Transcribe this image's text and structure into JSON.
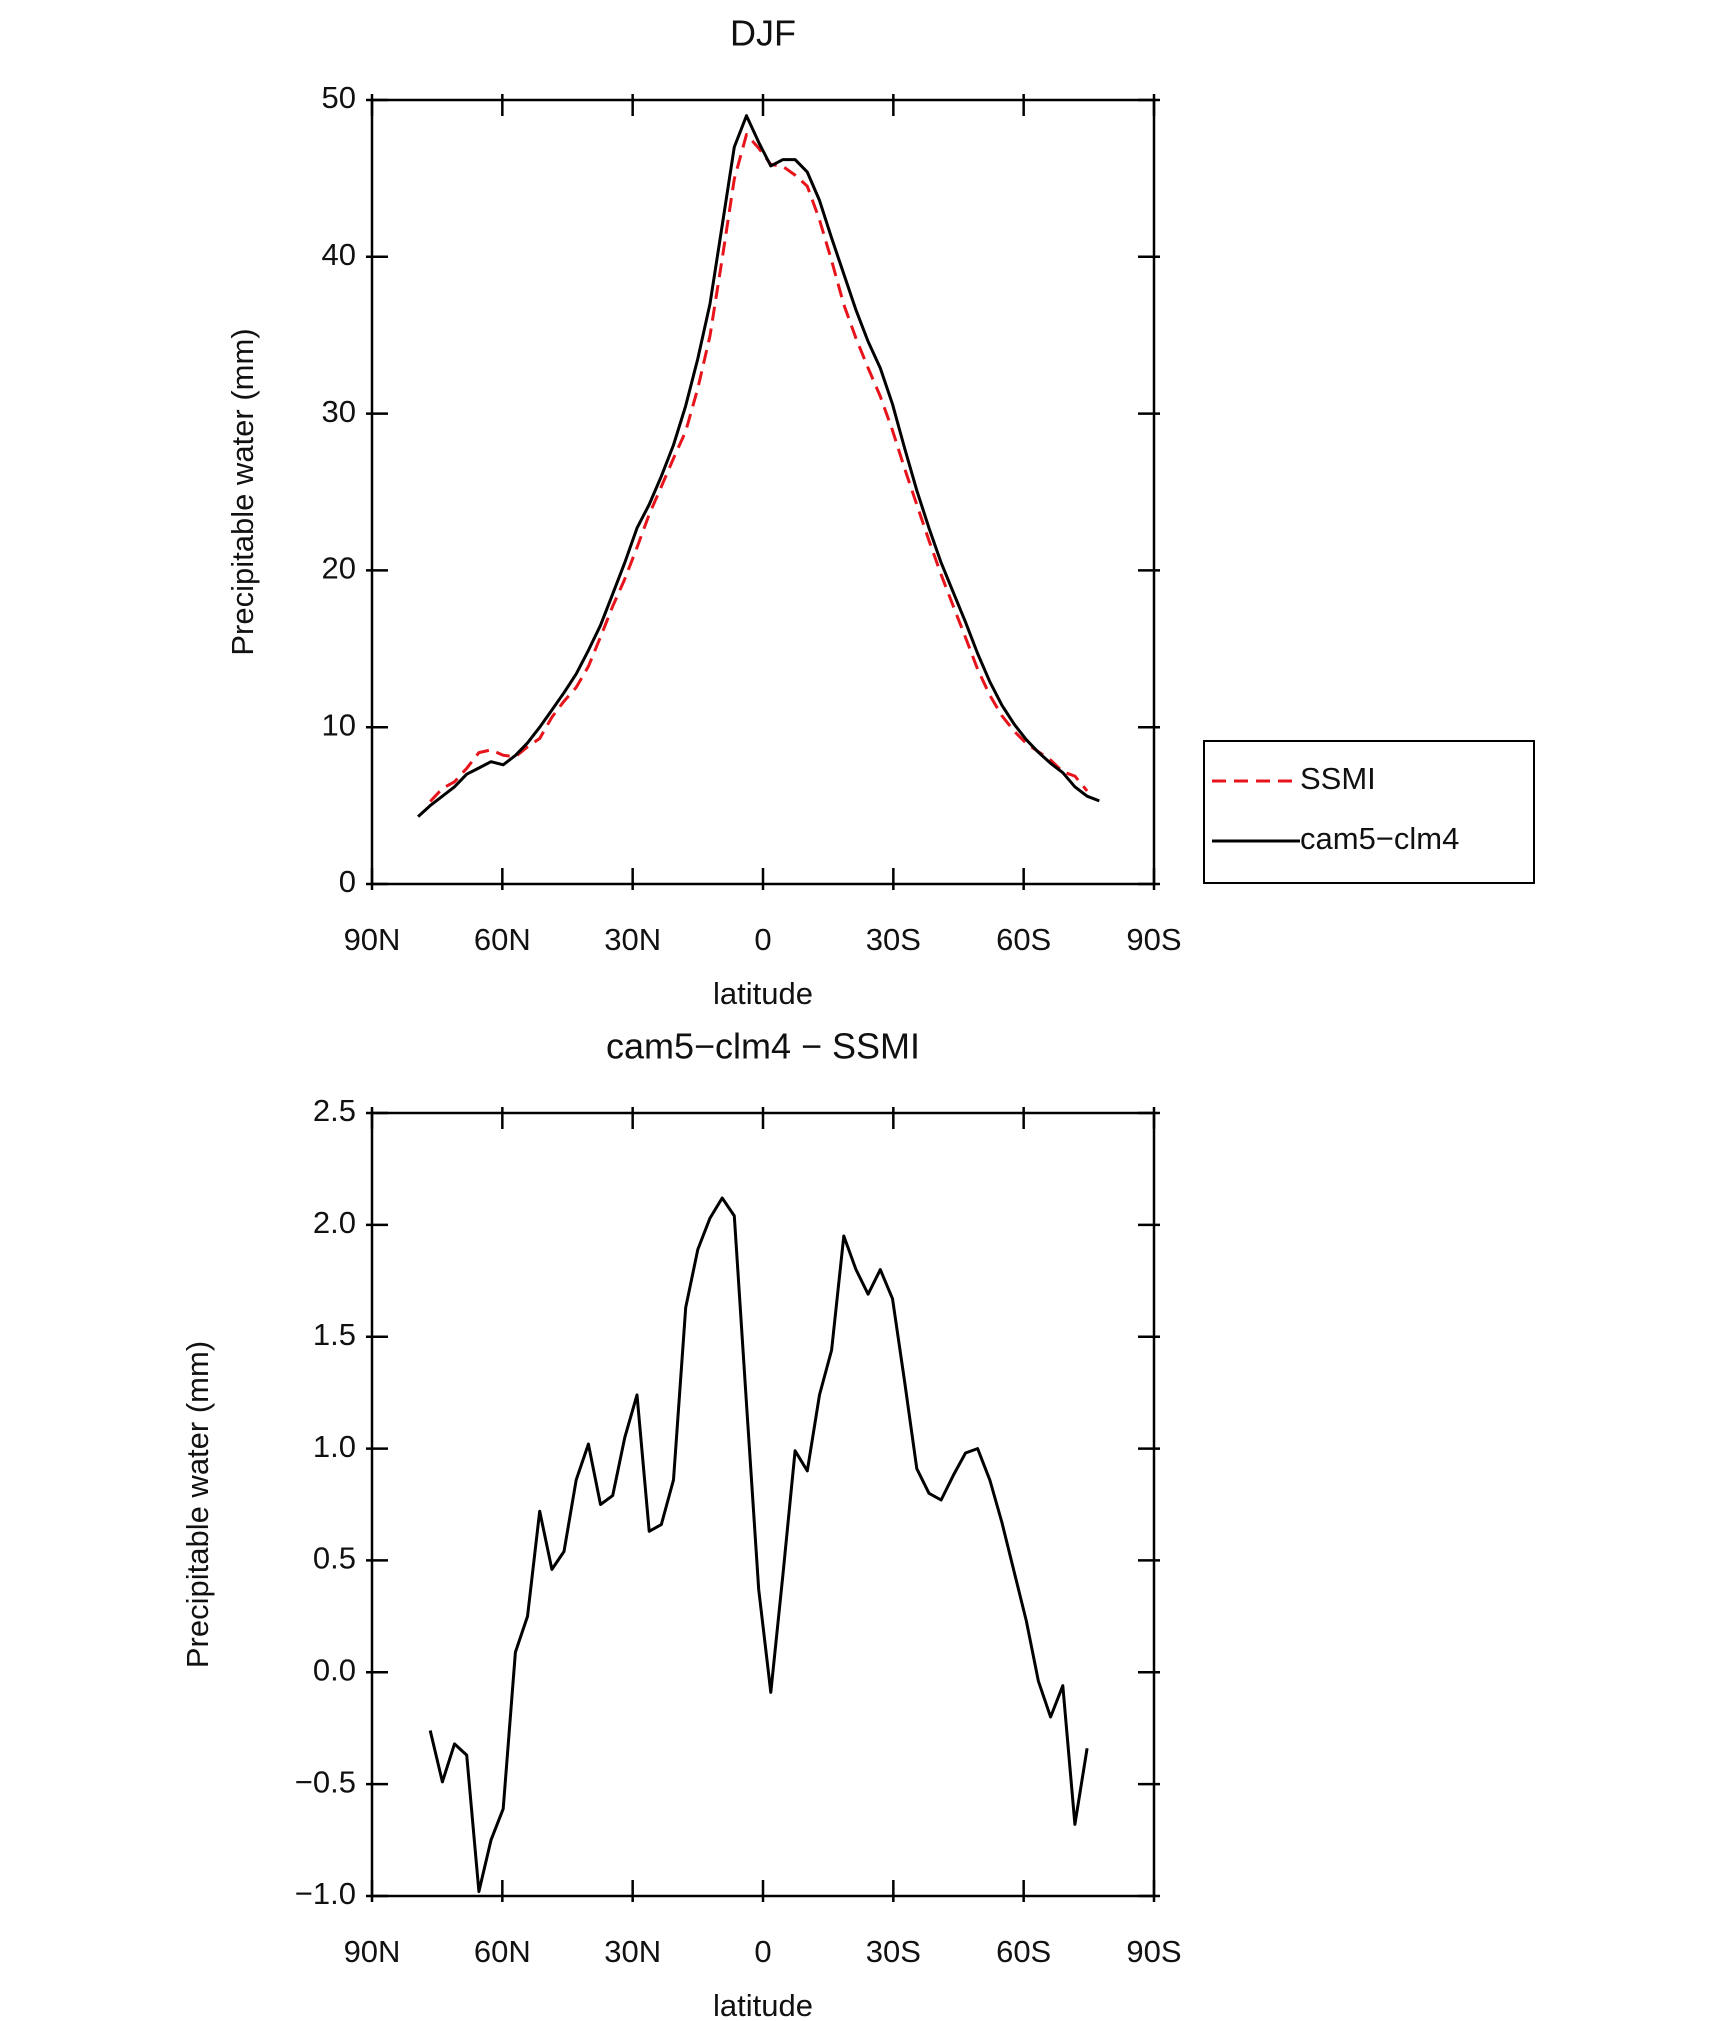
{
  "chart_data": [
    {
      "type": "line",
      "title": "DJF",
      "xlabel": "latitude",
      "ylabel": "Precipitable water (mm)",
      "x": [
        79.4,
        76.6,
        73.8,
        71.0,
        68.2,
        65.4,
        62.6,
        59.8,
        57.0,
        54.2,
        51.4,
        48.6,
        45.8,
        43.0,
        40.2,
        37.4,
        34.6,
        31.8,
        29.0,
        26.2,
        23.4,
        20.6,
        17.8,
        15.0,
        12.2,
        9.4,
        6.6,
        3.8,
        1.0,
        -1.8,
        -4.6,
        -7.4,
        -10.2,
        -13.0,
        -15.8,
        -18.6,
        -21.4,
        -24.2,
        -27.0,
        -29.8,
        -32.6,
        -35.4,
        -38.2,
        -41.0,
        -43.8,
        -46.6,
        -49.4,
        -52.2,
        -55.0,
        -57.8,
        -60.6,
        -63.4,
        -66.2,
        -69.0,
        -71.8,
        -74.6,
        -77.4
      ],
      "series": [
        {
          "name": "SSMI",
          "color": "#e8141b",
          "dash": true,
          "values": [
            null,
            5.26,
            6.09,
            6.52,
            7.37,
            8.38,
            8.55,
            8.21,
            8.11,
            8.75,
            9.28,
            10.64,
            11.66,
            12.54,
            13.88,
            15.75,
            17.71,
            19.45,
            21.46,
            23.57,
            25.34,
            27.14,
            28.87,
            31.61,
            34.97,
            39.88,
            44.96,
            47.8,
            46.93,
            45.89,
            45.76,
            45.21,
            44.5,
            42.36,
            39.76,
            36.95,
            34.8,
            32.91,
            31.1,
            28.93,
            26.5,
            24.19,
            21.9,
            19.73,
            17.72,
            15.72,
            13.7,
            12.04,
            10.73,
            9.75,
            8.97,
            8.44,
            7.9,
            7.16,
            6.88,
            5.94,
            null
          ]
        },
        {
          "name": "cam5−clm4",
          "color": "#000000",
          "dash": false,
          "values": [
            4.3,
            5.0,
            5.6,
            6.2,
            7.0,
            7.4,
            7.8,
            7.6,
            8.2,
            9.0,
            10.0,
            11.1,
            12.2,
            13.4,
            14.9,
            16.5,
            18.5,
            20.5,
            22.7,
            24.2,
            26.0,
            28.0,
            30.5,
            33.5,
            37.0,
            42.0,
            47.0,
            49.0,
            47.3,
            45.8,
            46.2,
            46.2,
            45.4,
            43.6,
            41.2,
            38.9,
            36.6,
            34.6,
            32.9,
            30.6,
            27.8,
            25.1,
            22.7,
            20.5,
            18.6,
            16.7,
            14.7,
            12.9,
            11.4,
            10.2,
            9.2,
            8.4,
            7.7,
            7.1,
            6.2,
            5.6,
            5.3
          ]
        }
      ],
      "xlim": [
        90,
        -90
      ],
      "xticks": [
        {
          "value": 90,
          "label": "90N"
        },
        {
          "value": 60,
          "label": "60N"
        },
        {
          "value": 30,
          "label": "30N"
        },
        0,
        {
          "value": -30,
          "label": "30S"
        },
        {
          "value": -60,
          "label": "60S"
        },
        {
          "value": -90,
          "label": "90S"
        }
      ],
      "ylim": [
        0,
        50
      ],
      "yticks": [
        0,
        10,
        20,
        30,
        40,
        50
      ],
      "legend": "right"
    },
    {
      "type": "line",
      "title": "cam5−clm4 − SSMI",
      "xlabel": "latitude",
      "ylabel": "Precipitable water (mm)",
      "x": [
        76.6,
        73.8,
        71.0,
        68.2,
        65.4,
        62.6,
        59.8,
        57.0,
        54.2,
        51.4,
        48.6,
        45.8,
        43.0,
        40.2,
        37.4,
        34.6,
        31.8,
        29.0,
        26.2,
        23.4,
        20.6,
        17.8,
        15.0,
        12.2,
        9.4,
        6.6,
        3.8,
        1.0,
        -1.8,
        -4.6,
        -7.4,
        -10.2,
        -13.0,
        -15.8,
        -18.6,
        -21.4,
        -24.2,
        -27.0,
        -29.8,
        -32.6,
        -35.4,
        -38.2,
        -41.0,
        -43.8,
        -46.6,
        -49.4,
        -52.2,
        -55.0,
        -57.8,
        -60.6,
        -63.4,
        -66.2,
        -69.0,
        -71.8,
        -74.6
      ],
      "values": [
        -0.26,
        -0.49,
        -0.32,
        -0.37,
        -0.98,
        -0.75,
        -0.61,
        0.09,
        0.25,
        0.72,
        0.46,
        0.54,
        0.86,
        1.02,
        0.75,
        0.79,
        1.05,
        1.24,
        0.63,
        0.66,
        0.86,
        1.63,
        1.89,
        2.03,
        2.12,
        2.04,
        1.2,
        0.37,
        -0.09,
        0.44,
        0.99,
        0.9,
        1.24,
        1.44,
        1.95,
        1.8,
        1.69,
        1.8,
        1.67,
        1.3,
        0.91,
        0.8,
        0.77,
        0.88,
        0.98,
        1.0,
        0.86,
        0.67,
        0.45,
        0.23,
        -0.04,
        -0.2,
        -0.06,
        -0.68,
        -0.34
      ],
      "color": "#000000",
      "xlim": [
        90,
        -90
      ],
      "xticks": [
        {
          "value": 90,
          "label": "90N"
        },
        {
          "value": 60,
          "label": "60N"
        },
        {
          "value": 30,
          "label": "30N"
        },
        0,
        {
          "value": -30,
          "label": "30S"
        },
        {
          "value": -60,
          "label": "60S"
        },
        {
          "value": -90,
          "label": "90S"
        }
      ],
      "ylim": [
        -1.0,
        2.5
      ],
      "yticks": [
        {
          "value": -1.0,
          "label": "−1.0"
        },
        {
          "value": -0.5,
          "label": "−0.5"
        },
        {
          "value": 0,
          "label": "0.0"
        },
        0.5,
        {
          "value": 1.0,
          "label": "1.0"
        },
        1.5,
        {
          "value": 2.0,
          "label": "2.0"
        },
        2.5
      ]
    }
  ]
}
